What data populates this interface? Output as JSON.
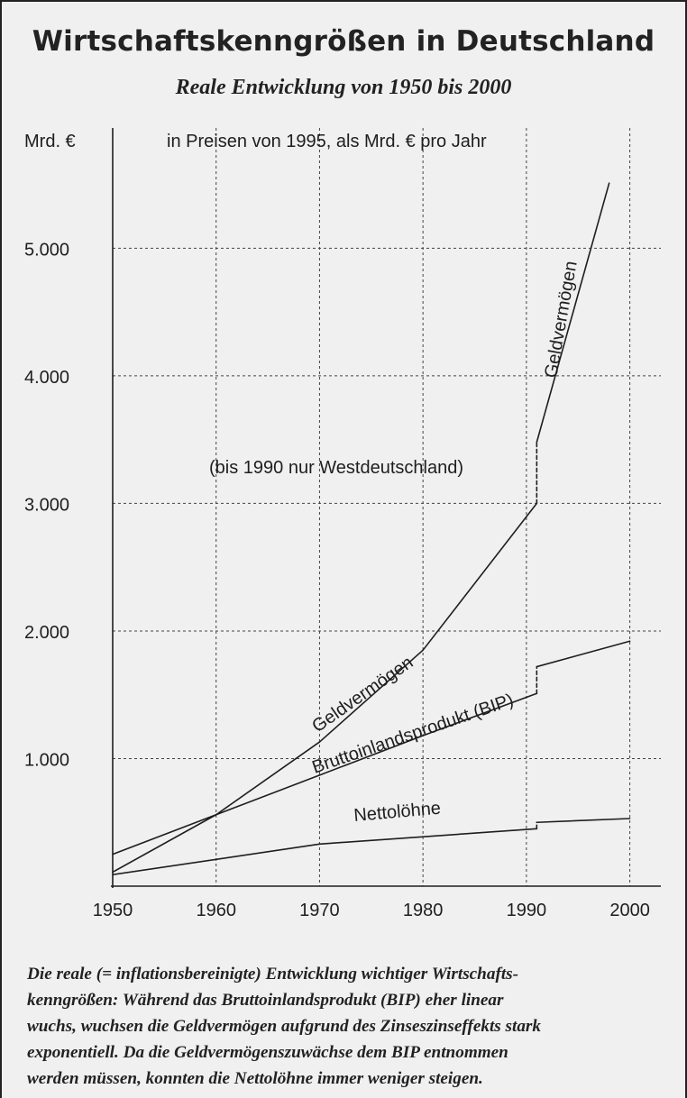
{
  "title": "Wirtschaftskenngrößen in Deutschland",
  "subtitle": "Reale Entwicklung von 1950 bis 2000",
  "caption_lines": [
    "Die reale (= inflationsbereinigte) Entwicklung wichtiger Wirtschafts-",
    "kenngrößen: Während das Bruttoinlandsprodukt (BIP) eher linear",
    "wuchs, wuchsen die Geldvermögen aufgrund des Zinseszinseffekts stark",
    "exponentiell. Da die Geldvermögenszuwächse dem BIP entnommen",
    "werden müssen, konnten die Nettolöhne immer weniger steigen."
  ],
  "chart_data": {
    "type": "line",
    "title": "Wirtschaftskenngrößen in Deutschland",
    "subtitle": "Reale Entwicklung von 1950 bis 2000",
    "ylabel": "Mrd. €",
    "unit_note": "in Preisen von 1995, als Mrd. € pro Jahr",
    "region_note": "(bis 1990 nur Westdeutschland)",
    "xlim": [
      1950,
      2003
    ],
    "ylim": [
      0,
      5900
    ],
    "xticks": [
      1950,
      1960,
      1970,
      1980,
      1990,
      2000
    ],
    "xtick_labels": [
      "1950",
      "1960",
      "1970",
      "1980",
      "1990",
      "2000"
    ],
    "yticks": [
      1000,
      2000,
      3000,
      4000,
      5000
    ],
    "ytick_labels": [
      "1.000",
      "2.000",
      "3.000",
      "4.000",
      "5.000"
    ],
    "grid": true,
    "series": [
      {
        "name": "Geldvermögen",
        "points": [
          [
            1950,
            110
          ],
          [
            1960,
            560
          ],
          [
            1970,
            1130
          ],
          [
            1980,
            1850
          ],
          [
            1991,
            3000
          ],
          [
            1991,
            3480
          ],
          [
            1998,
            5510
          ]
        ]
      },
      {
        "name": "Bruttoinlandsprodukt (BIP)",
        "points": [
          [
            1950,
            250
          ],
          [
            1960,
            560
          ],
          [
            1970,
            870
          ],
          [
            1980,
            1180
          ],
          [
            1991,
            1510
          ],
          [
            1991,
            1720
          ],
          [
            2000,
            1920
          ]
        ]
      },
      {
        "name": "Nettolöhne",
        "points": [
          [
            1950,
            90
          ],
          [
            1970,
            330
          ],
          [
            1991,
            450
          ],
          [
            1991,
            500
          ],
          [
            2000,
            530
          ]
        ]
      }
    ],
    "annotations": [
      "Geldvermögen",
      "Geldvermögen",
      "Bruttoinlandsprodukt (BIP)",
      "Nettolöhne"
    ]
  }
}
